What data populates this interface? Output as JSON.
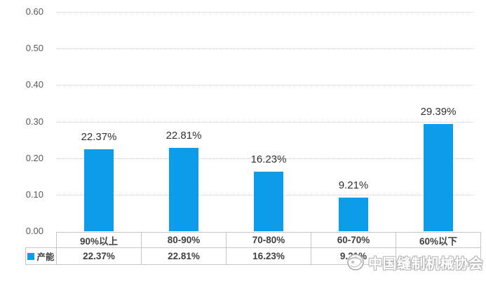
{
  "chart_data": {
    "type": "bar",
    "title": "",
    "categories": [
      "90%以上",
      "80-90%",
      "70-80%",
      "60-70%",
      "60%以下"
    ],
    "series": [
      {
        "name": "产能",
        "values": [
          0.2237,
          0.2281,
          0.1623,
          0.0921,
          0.2939
        ]
      }
    ],
    "data_labels": [
      "22.37%",
      "22.81%",
      "16.23%",
      "9.21%",
      "29.39%"
    ],
    "table_values": [
      "22.37%",
      "22.81%",
      "16.23%",
      "9.21%",
      ""
    ],
    "legend_label": "产能",
    "ylim": [
      0,
      0.6
    ],
    "ytick_step": 0.1,
    "ytick_labels": [
      "0.00",
      "0.10",
      "0.20",
      "0.30",
      "0.40",
      "0.50",
      "0.60"
    ],
    "grid": "horizontal-dotted",
    "legend_position": "bottom-table-left",
    "bar_color": "#0B9DE9",
    "grid_color": "#c9c9c9",
    "table_border_color": "#c6c6c6"
  },
  "watermark": {
    "text": "中国缝制机械协会",
    "logo": "csma-logo"
  }
}
